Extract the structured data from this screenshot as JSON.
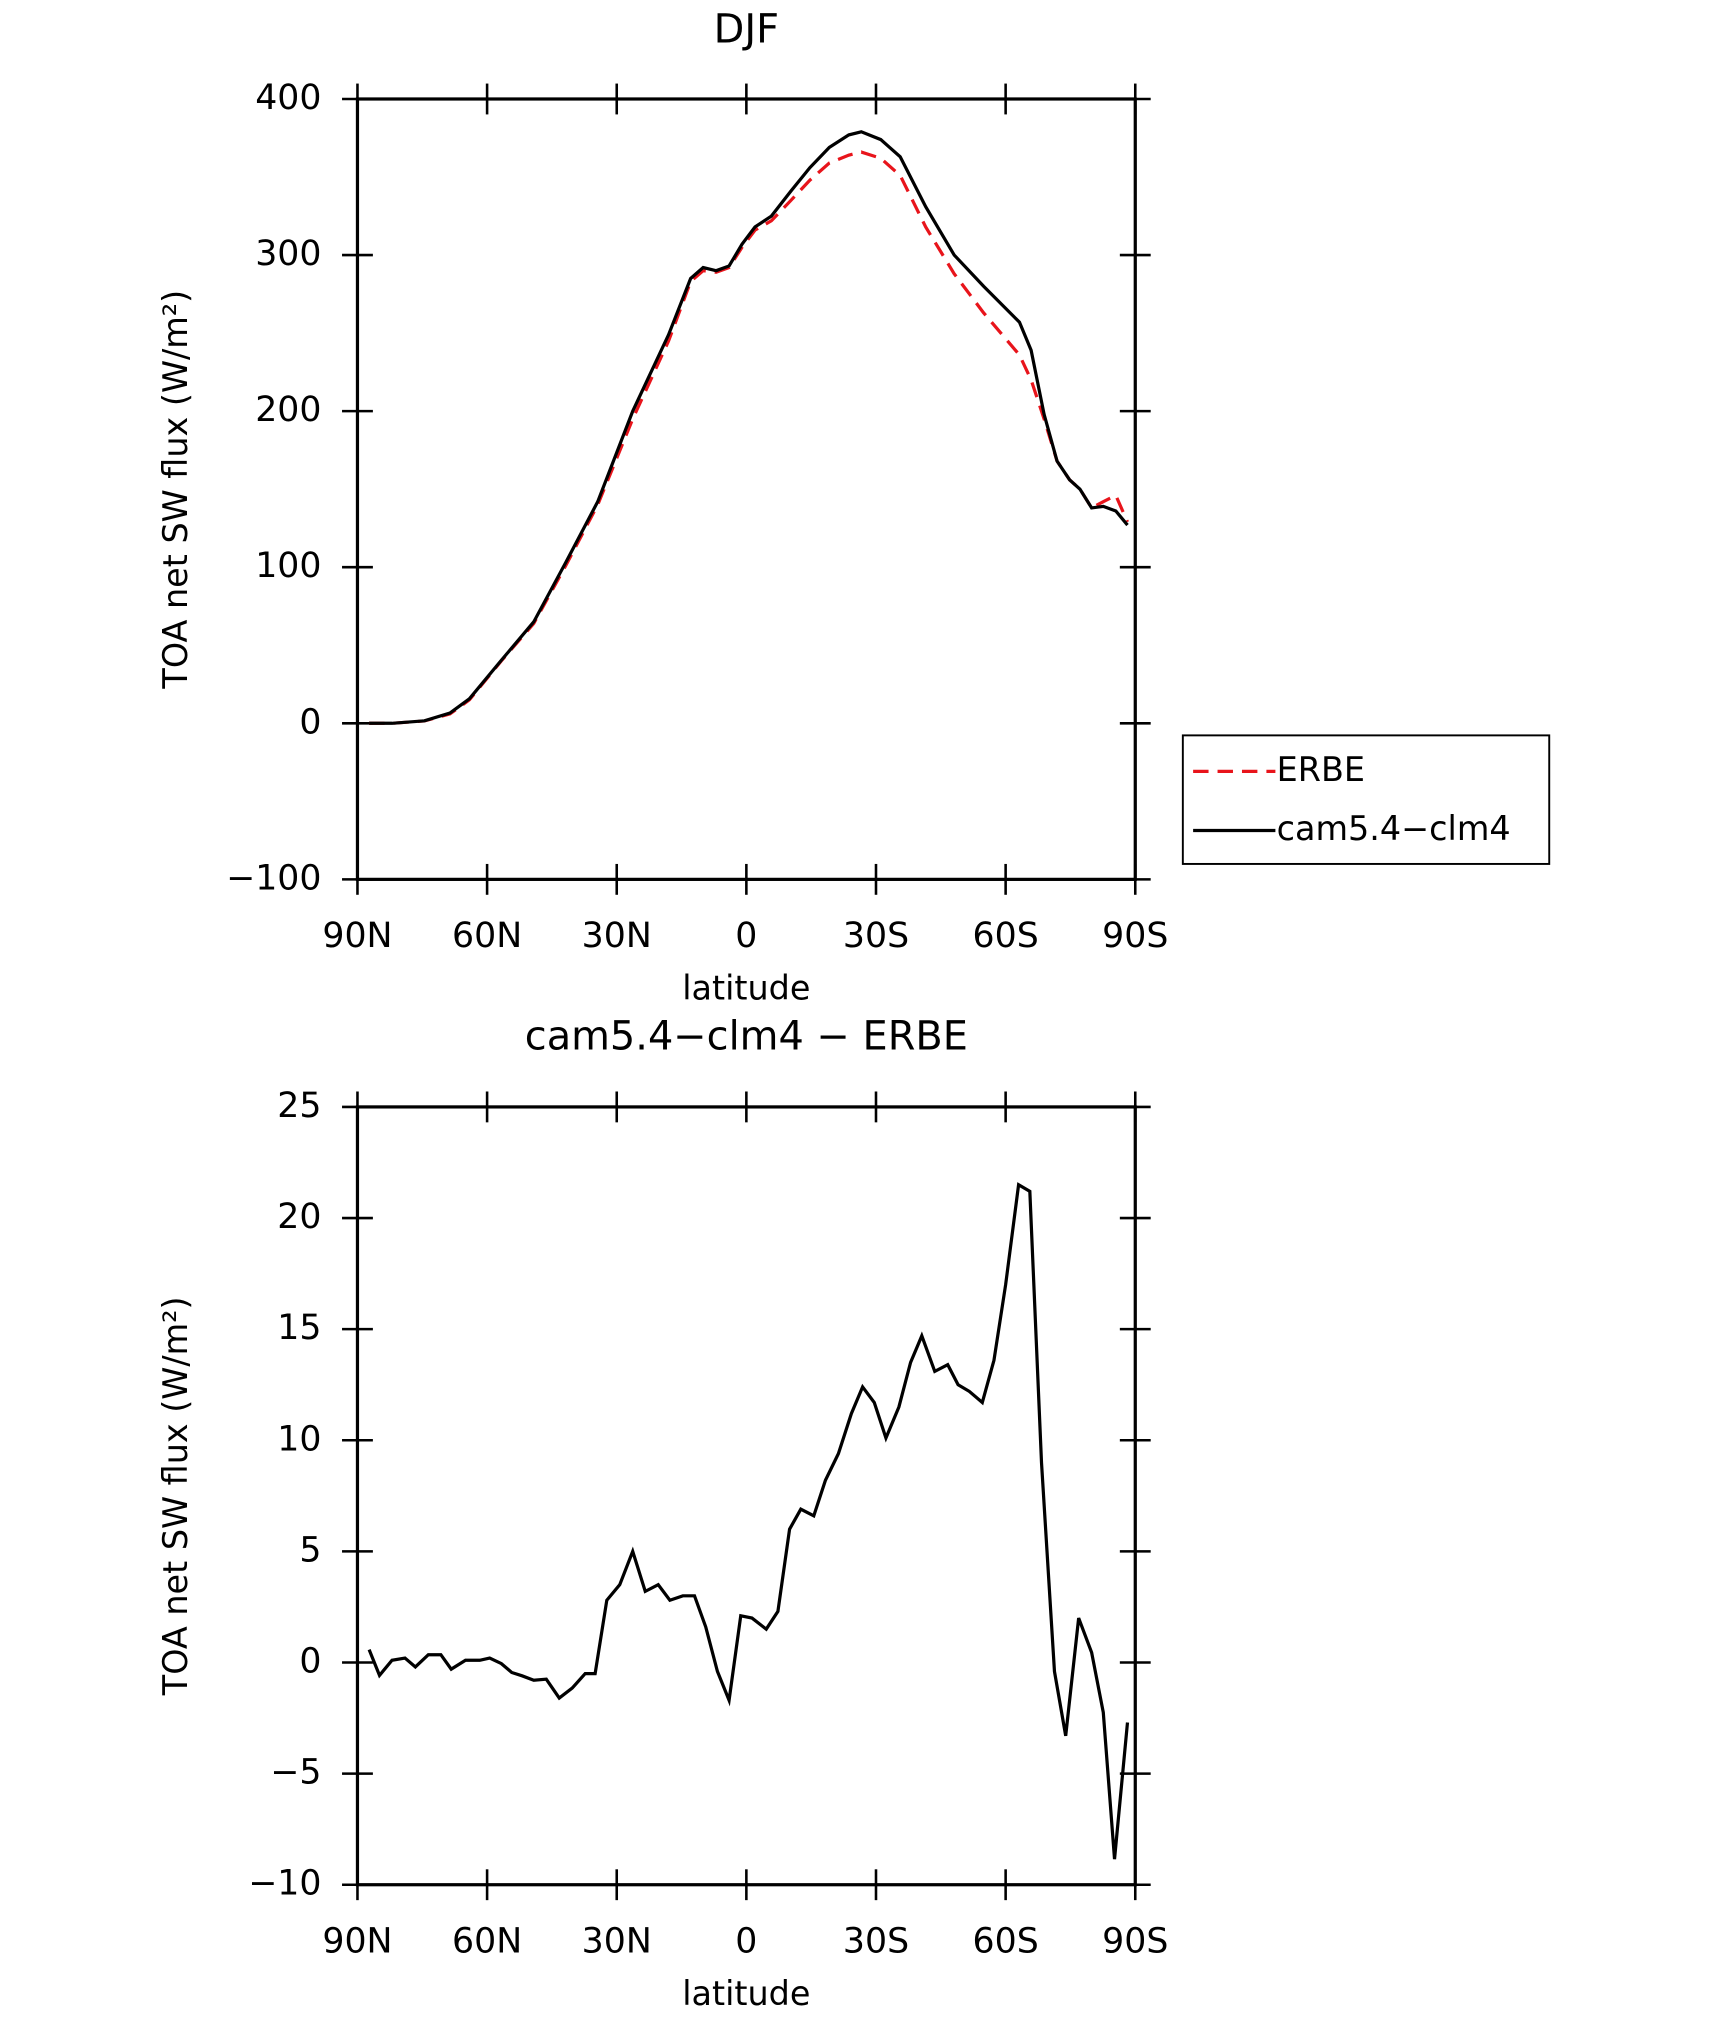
{
  "chart_data": [
    {
      "type": "line",
      "title": "DJF",
      "xlabel": "latitude",
      "ylabel": "TOA net SW flux (W/m²)",
      "xlim": [
        90,
        -90
      ],
      "xticks": [
        {
          "value": 90,
          "label": "90N"
        },
        {
          "value": 60,
          "label": "60N"
        },
        {
          "value": 30,
          "label": "30N"
        },
        0,
        {
          "value": -30,
          "label": "30S"
        },
        {
          "value": -60,
          "label": "60S"
        },
        {
          "value": -90,
          "label": "90S"
        }
      ],
      "ylim": [
        -100,
        400
      ],
      "yticks": [
        {
          "value": -100,
          "label": "−100"
        },
        0,
        100,
        200,
        300,
        400
      ],
      "legend": "right",
      "x": [
        87.3,
        82,
        74.5,
        68.6,
        64.1,
        56.7,
        49.2,
        41.8,
        34.4,
        26.3,
        18,
        12.9,
        10,
        7,
        4,
        1,
        -2,
        -5.8,
        -10.3,
        -14.7,
        -19.2,
        -23.7,
        -26.6,
        -31.1,
        -35.6,
        -41.5,
        -48.1,
        -54.9,
        -63.2,
        -65.9,
        -68.9,
        -71.9,
        -74.8,
        -77.2,
        -79.9,
        -82.6,
        -85.5,
        -88.2
      ],
      "series": [
        {
          "name": "ERBE",
          "color": "#e8141b",
          "linestyle": "dashed",
          "values": [
            0,
            0,
            1.5,
            6,
            15,
            40,
            64,
            101,
            140,
            195,
            245,
            283,
            290,
            289,
            292,
            305,
            316,
            322,
            335,
            348,
            359,
            364,
            366,
            362,
            351,
            318,
            288,
            263,
            236,
            220,
            195,
            168,
            156,
            150,
            138,
            142,
            146,
            129
          ]
        },
        {
          "name": "cam5.4−clm4",
          "color": "#000000",
          "linestyle": "solid",
          "values": [
            0,
            0,
            1.6,
            6.6,
            15.7,
            40.4,
            65,
            103,
            142,
            200,
            249,
            285,
            292,
            290,
            293,
            307,
            318,
            325,
            341,
            356,
            369,
            377,
            379,
            374,
            363,
            331,
            300,
            280,
            257,
            239,
            198,
            168,
            156,
            150,
            138,
            139,
            136,
            127
          ]
        }
      ]
    },
    {
      "type": "line",
      "title": "cam5.4−clm4 − ERBE",
      "xlabel": "latitude",
      "ylabel": "TOA net SW flux (W/m²)",
      "xlim": [
        90,
        -90
      ],
      "xticks": [
        {
          "value": 90,
          "label": "90N"
        },
        {
          "value": 60,
          "label": "60N"
        },
        {
          "value": 30,
          "label": "30N"
        },
        0,
        {
          "value": -30,
          "label": "30S"
        },
        {
          "value": -60,
          "label": "60S"
        },
        {
          "value": -90,
          "label": "90S"
        }
      ],
      "ylim": [
        -10,
        25
      ],
      "yticks": [
        {
          "value": -10,
          "label": "−10"
        },
        {
          "value": -5,
          "label": "−5"
        },
        0,
        5,
        10,
        15,
        20,
        25
      ],
      "color": "#000000",
      "x": [
        87.3,
        84.9,
        82,
        79,
        76.6,
        73.6,
        70.7,
        68.3,
        65,
        61.7,
        59.4,
        56.7,
        54.3,
        51.9,
        49.2,
        46.3,
        43.3,
        40.3,
        37.3,
        35,
        32.3,
        29.3,
        26.3,
        23.4,
        20.4,
        17.7,
        14.7,
        12,
        9.4,
        6.7,
        4,
        1.3,
        -1.3,
        -4.6,
        -7.3,
        -10,
        -12.6,
        -15.6,
        -18.3,
        -21.3,
        -24.3,
        -26.9,
        -29.6,
        -32.3,
        -35.3,
        -38,
        -40.6,
        -43.6,
        -46.6,
        -49,
        -51.6,
        -54.6,
        -57.3,
        -60,
        -63,
        -65.6,
        -68.3,
        -71.3,
        -73.9,
        -76.9,
        -79.9,
        -82.6,
        -85.2,
        -88.2
      ],
      "values": [
        0.58,
        -0.58,
        0.1,
        0.2,
        -0.2,
        0.35,
        0.35,
        -0.3,
        0.1,
        0.1,
        0.2,
        -0.05,
        -0.45,
        -0.6,
        -0.8,
        -0.75,
        -1.6,
        -1.15,
        -0.5,
        -0.5,
        2.8,
        3.5,
        5.0,
        3.2,
        3.5,
        2.8,
        3.0,
        3.0,
        1.6,
        -0.4,
        -1.7,
        2.1,
        2.0,
        1.5,
        2.3,
        6.0,
        6.9,
        6.6,
        8.2,
        9.4,
        11.2,
        12.4,
        11.7,
        10.1,
        11.5,
        13.5,
        14.7,
        13.1,
        13.4,
        12.5,
        12.2,
        11.7,
        13.6,
        17.0,
        21.5,
        21.2,
        9.0,
        -0.4,
        -3.3,
        2.0,
        0.45,
        -2.25,
        -8.85,
        -2.7
      ]
    }
  ]
}
